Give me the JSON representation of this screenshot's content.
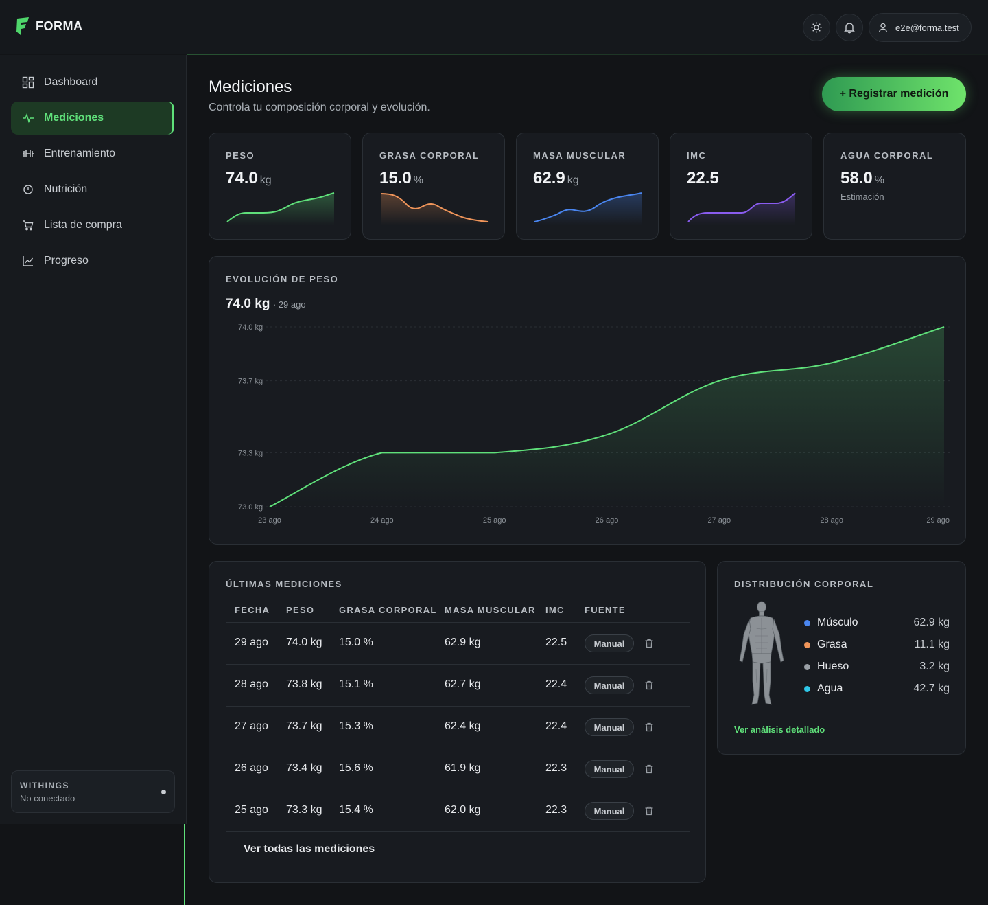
{
  "app": {
    "name": "FORMA",
    "user_email": "e2e@forma.test"
  },
  "nav": {
    "items": [
      {
        "label": "Dashboard",
        "icon": "grid-icon"
      },
      {
        "label": "Mediciones",
        "icon": "pulse-icon"
      },
      {
        "label": "Entrenamiento",
        "icon": "dumbbell-icon"
      },
      {
        "label": "Nutrición",
        "icon": "clock-icon"
      },
      {
        "label": "Lista de compra",
        "icon": "cart-icon"
      },
      {
        "label": "Progreso",
        "icon": "chart-line-icon"
      }
    ],
    "active_index": 1
  },
  "withings": {
    "title": "WITHINGS",
    "status": "No conectado"
  },
  "page": {
    "title": "Mediciones",
    "subtitle": "Controla tu composición corporal y evolución.",
    "primary_button": "+ Registrar medición"
  },
  "stats": [
    {
      "label": "PESO",
      "value": "74.0",
      "unit": "kg",
      "color": "#5fe07a"
    },
    {
      "label": "GRASA CORPORAL",
      "value": "15.0",
      "unit": "%",
      "color": "#f0955a"
    },
    {
      "label": "MASA MUSCULAR",
      "value": "62.9",
      "unit": "kg",
      "color": "#4a86f0"
    },
    {
      "label": "IMC",
      "value": "22.5",
      "unit": "",
      "color": "#8a5cf0"
    },
    {
      "label": "AGUA CORPORAL",
      "value": "58.0",
      "unit": "%",
      "sub": "Estimación"
    }
  ],
  "weight_chart": {
    "title": "EVOLUCIÓN DE PESO",
    "current_value": "74.0 kg",
    "current_date": "· 29 ago"
  },
  "chart_data": {
    "type": "area",
    "x": [
      "23 ago",
      "24 ago",
      "25 ago",
      "26 ago",
      "27 ago",
      "28 ago",
      "29 ago"
    ],
    "series": [
      {
        "values": [
          73.0,
          73.3,
          73.3,
          73.4,
          73.7,
          73.8,
          74.0
        ]
      }
    ],
    "y_ticks": [
      "74.0 kg",
      "73.7 kg",
      "73.3 kg",
      "73.0 kg"
    ],
    "ylim": [
      73.0,
      74.0
    ],
    "grid": true,
    "color": "#5fe07a"
  },
  "table": {
    "title": "ÚLTIMAS MEDICIONES",
    "headers": [
      "FECHA",
      "PESO",
      "GRASA CORPORAL",
      "MASA MUSCULAR",
      "IMC",
      "FUENTE"
    ],
    "rows": [
      [
        "29 ago",
        "74.0 kg",
        "15.0 %",
        "62.9 kg",
        "22.5",
        "Manual"
      ],
      [
        "28 ago",
        "73.8 kg",
        "15.1 %",
        "62.7 kg",
        "22.4",
        "Manual"
      ],
      [
        "27 ago",
        "73.7 kg",
        "15.3 %",
        "62.4 kg",
        "22.4",
        "Manual"
      ],
      [
        "26 ago",
        "73.4 kg",
        "15.6 %",
        "61.9 kg",
        "22.3",
        "Manual"
      ],
      [
        "25 ago",
        "73.3 kg",
        "15.4 %",
        "62.0 kg",
        "22.3",
        "Manual"
      ]
    ],
    "see_all": "Ver todas las mediciones"
  },
  "distribution": {
    "title": "DISTRIBUCIÓN CORPORAL",
    "items": [
      {
        "label": "Músculo",
        "value": "62.9 kg",
        "color": "#4a86f0"
      },
      {
        "label": "Grasa",
        "value": "11.1 kg",
        "color": "#f0955a"
      },
      {
        "label": "Hueso",
        "value": "3.2 kg",
        "color": "#9aa0a6"
      },
      {
        "label": "Agua",
        "value": "42.7 kg",
        "color": "#2fc7e8"
      }
    ],
    "link": "Ver análisis detallado"
  }
}
